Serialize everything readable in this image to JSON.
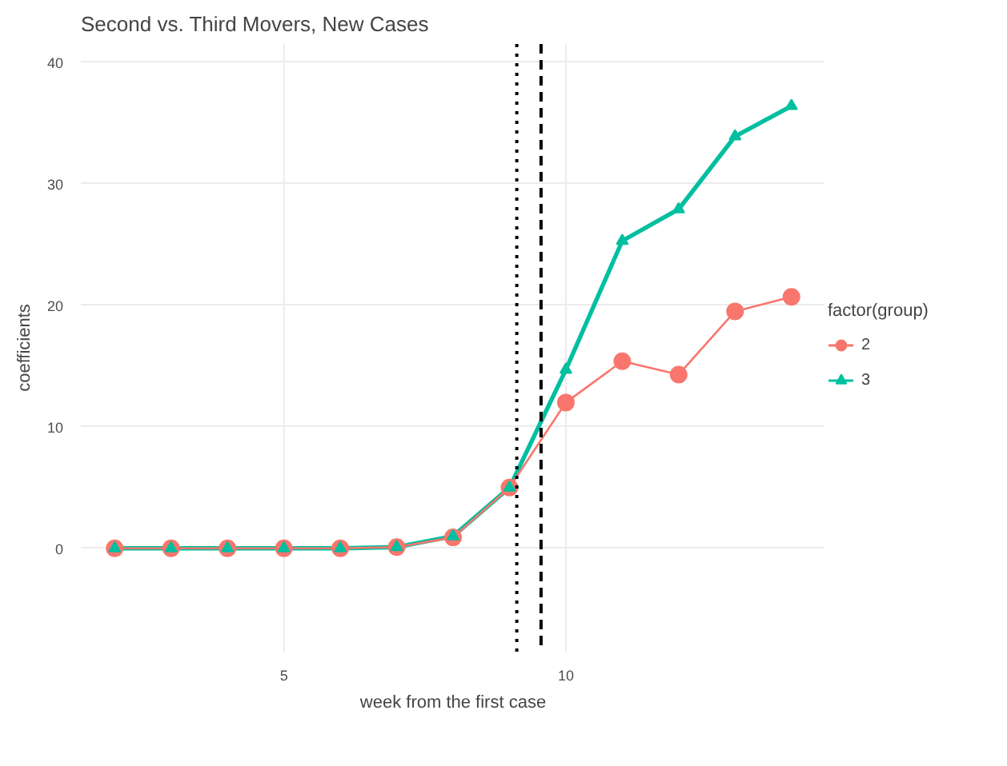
{
  "chart_data": {
    "type": "line",
    "title": "Second vs. Third Movers, New Cases",
    "xlabel": "week from the first case",
    "ylabel": "coefficients",
    "legend_title": "factor(group)",
    "x": [
      2,
      3,
      4,
      5,
      6,
      7,
      8,
      9,
      10,
      11,
      12,
      13,
      14
    ],
    "series": [
      {
        "name": "2",
        "color": "#f8766d",
        "marker": "circle",
        "values": [
          0,
          0,
          0,
          0,
          0,
          0.1,
          0.9,
          5,
          12.0,
          15.4,
          14.3,
          19.5,
          20.7
        ]
      },
      {
        "name": "3",
        "color": "#00bfa0",
        "marker": "triangle",
        "values": [
          0,
          0,
          0,
          0,
          0,
          0.1,
          1.0,
          5,
          14.7,
          25.3,
          27.9,
          33.9,
          36.4
        ]
      }
    ],
    "xlim": [
      1.4,
      14.6
    ],
    "ylim": [
      -8.5,
      41.5
    ],
    "xticks": [
      5,
      10
    ],
    "yticks": [
      0,
      10,
      20,
      30,
      40
    ],
    "ref_lines": [
      {
        "axis": "x",
        "value": 9.13,
        "color": "#000000",
        "line_style": "dotted"
      },
      {
        "axis": "x",
        "value": 9.56,
        "color": "#000000",
        "line_style": "dashed"
      }
    ],
    "grid": true,
    "legend": "right",
    "line_style": "solid"
  }
}
